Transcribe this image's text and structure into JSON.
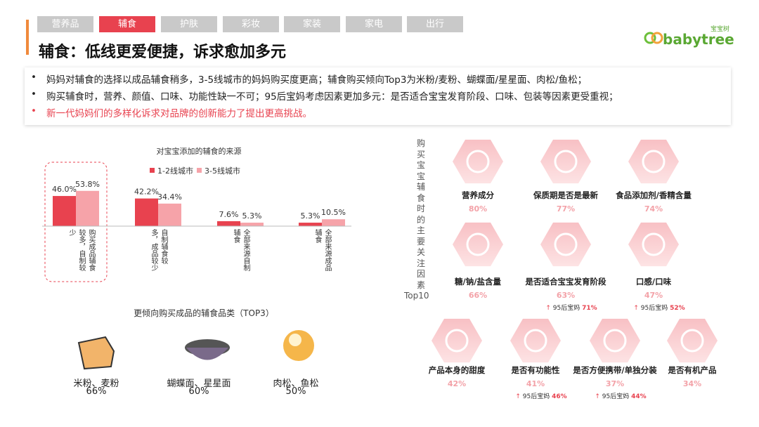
{
  "tabs": [
    "营养品",
    "辅食",
    "护肤",
    "彩妆",
    "家装",
    "家电",
    "出行"
  ],
  "logo": {
    "brand": "babytree",
    "cn": "宝宝树"
  },
  "title": "辅食：低线更爱便捷，诉求愈加多元",
  "bullets": [
    "妈妈对辅食的选择以成品辅食稍多，3-5线城市的妈妈购买度更高；辅食购买倾向Top3为米粉/麦粉、蝴蝶面/星星面、肉松/鱼松；",
    "购买辅食时，营养、颜值、口味、功能性缺一不可；95后宝妈考虑因素更加多元：是否适合宝宝发育阶段、口味、包装等因素更受重视；",
    "新一代妈妈们的多样化诉求对品牌的创新能力了提出更高挑战。"
  ],
  "chart_data": {
    "type": "bar",
    "title": "对宝宝添加的辅食的来源",
    "categories": [
      "购买成品辅食较多，自制较少",
      "自制辅食较多，成品较少",
      "全部来源自制辅食",
      "全部来源成品辅食"
    ],
    "series": [
      {
        "name": "1-2线城市",
        "color": "#e8424f",
        "values": [
          46.0,
          42.2,
          7.6,
          5.3
        ],
        "value_labels": [
          "46.0%",
          "42.2%",
          "7.6%",
          "5.3%"
        ]
      },
      {
        "name": "3-5线城市",
        "color": "#f6a3a9",
        "values": [
          53.8,
          34.4,
          5.3,
          10.5
        ],
        "value_labels": [
          "53.8%",
          "34.4%",
          "5.3%",
          "10.5%"
        ]
      }
    ],
    "ylim": [
      0,
      60
    ]
  },
  "top3": {
    "title": "更倾向购买成品的辅食品类（TOP3）",
    "items": [
      {
        "label": "米粉、麦粉",
        "value": "66%"
      },
      {
        "label": "蝴蝶面、星星面",
        "value": "60%"
      },
      {
        "label": "肉松、鱼松",
        "value": "50%"
      }
    ]
  },
  "factors": {
    "title": "购买宝宝辅食时的主要关注因素",
    "suffix": "Top10",
    "items": [
      {
        "name": "营养成分",
        "value": "80%"
      },
      {
        "name": "保质期是否是最新",
        "value": "77%"
      },
      {
        "name": "食品添加剂/香精含量",
        "value": "74%"
      },
      {
        "name": "糖/钠/盐含量",
        "value": "66%"
      },
      {
        "name": "是否适合宝宝发育阶段",
        "value": "63%",
        "note": "95后宝妈",
        "note_value": "71%"
      },
      {
        "name": "口感/口味",
        "value": "47%",
        "note": "95后宝妈",
        "note_value": "52%"
      },
      {
        "name": "产品本身的甜度",
        "value": "42%"
      },
      {
        "name": "是否有功能性",
        "value": "41%",
        "note": "95后宝妈",
        "note_value": "46%"
      },
      {
        "name": "是否方便携带/单独分装",
        "value": "37%",
        "note": "95后宝妈",
        "note_value": "44%"
      },
      {
        "name": "是否有机产品",
        "value": "34%"
      }
    ]
  }
}
